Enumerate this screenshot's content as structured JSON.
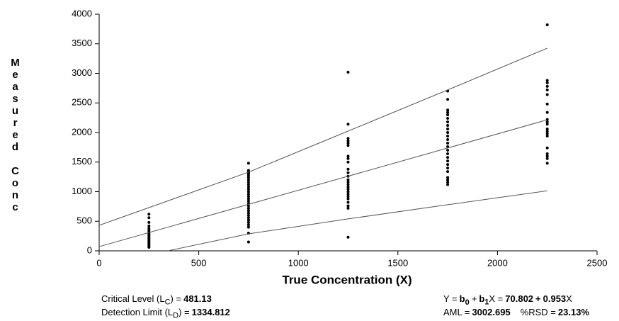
{
  "chart_data": {
    "type": "scatter",
    "y_label": "Measured Conc",
    "x_label": "True Concentration (X)",
    "xlim": [
      0,
      2500
    ],
    "ylim": [
      0,
      4000
    ],
    "xticks": [
      0,
      500,
      1000,
      1500,
      2000,
      2500
    ],
    "yticks": [
      0,
      500,
      1000,
      1500,
      2000,
      2500,
      3000,
      3500,
      4000
    ],
    "series": [
      {
        "kind": "points",
        "color": "#000000",
        "x": [
          250,
          250,
          250,
          250,
          250,
          250,
          250,
          250,
          250,
          250,
          250,
          250,
          250,
          250,
          250,
          250,
          250,
          250,
          250,
          250
        ],
        "values": [
          620,
          560,
          480,
          420,
          380,
          350,
          320,
          300,
          280,
          260,
          240,
          220,
          200,
          180,
          160,
          140,
          120,
          100,
          80,
          60
        ]
      },
      {
        "kind": "points",
        "color": "#000000",
        "x": [
          750,
          750,
          750,
          750,
          750,
          750,
          750,
          750,
          750,
          750,
          750,
          750,
          750,
          750,
          750,
          750,
          750,
          750,
          750,
          750,
          750,
          750,
          750,
          750,
          750,
          750,
          750,
          750,
          750,
          750
        ],
        "values": [
          1480,
          1360,
          1340,
          1320,
          1300,
          1270,
          1240,
          1200,
          1160,
          1120,
          1080,
          1040,
          1000,
          960,
          920,
          880,
          840,
          800,
          760,
          720,
          680,
          640,
          600,
          560,
          520,
          480,
          440,
          400,
          300,
          150
        ]
      },
      {
        "kind": "points",
        "color": "#000000",
        "x": [
          1250,
          1250,
          1250,
          1250,
          1250,
          1250,
          1250,
          1250,
          1250,
          1250,
          1250,
          1250,
          1250,
          1250,
          1250,
          1250,
          1250,
          1250,
          1250,
          1250,
          1250,
          1250,
          1250,
          1250,
          1250
        ],
        "values": [
          3020,
          2140,
          1900,
          1860,
          1820,
          1780,
          1600,
          1560,
          1500,
          1380,
          1320,
          1260,
          1200,
          1160,
          1120,
          1080,
          1040,
          1000,
          960,
          920,
          880,
          820,
          760,
          720,
          230
        ]
      },
      {
        "kind": "points",
        "color": "#000000",
        "x": [
          1750,
          1750,
          1750,
          1750,
          1750,
          1750,
          1750,
          1750,
          1750,
          1750,
          1750,
          1750,
          1750,
          1750,
          1750,
          1750,
          1750,
          1750,
          1750,
          1750,
          1750,
          1750,
          1750,
          1750,
          1750
        ],
        "values": [
          2700,
          2560,
          2380,
          2340,
          2300,
          2240,
          2180,
          2120,
          2060,
          2000,
          1940,
          1880,
          1820,
          1760,
          1700,
          1640,
          1580,
          1520,
          1460,
          1400,
          1340,
          1240,
          1200,
          1160,
          1120
        ]
      },
      {
        "kind": "points",
        "color": "#000000",
        "x": [
          2250,
          2250,
          2250,
          2250,
          2250,
          2250,
          2250,
          2250,
          2250,
          2250,
          2250,
          2250,
          2250,
          2250,
          2250,
          2250,
          2250,
          2250,
          2250,
          2250
        ],
        "values": [
          3820,
          2880,
          2840,
          2780,
          2720,
          2640,
          2480,
          2340,
          2220,
          2180,
          2140,
          2060,
          2020,
          1980,
          1940,
          1740,
          1640,
          1600,
          1560,
          1480
        ]
      },
      {
        "kind": "line",
        "color": "#555555",
        "x": [
          0,
          750,
          1250,
          1750,
          2250
        ],
        "values": [
          431,
          1330,
          2024,
          2720,
          3425
        ]
      },
      {
        "kind": "line",
        "color": "#555555",
        "x": [
          0,
          750,
          1250,
          1750,
          2250
        ],
        "values": [
          71,
          786,
          1262,
          1738,
          2215
        ]
      },
      {
        "kind": "line",
        "color": "#555555",
        "x": [
          345,
          750,
          1250,
          1750,
          2250
        ],
        "values": [
          0,
          287,
          540,
          780,
          1015
        ]
      }
    ]
  },
  "footer": {
    "critical_level": {
      "label": "Critical Level (L",
      "sub": "C",
      "close": ") =",
      "value": 481.13
    },
    "detection_limit": {
      "label": "Detection Limit (L",
      "sub": "D",
      "close": ") =",
      "value": 1334.812
    },
    "equation": {
      "lhs": "Y =",
      "b0": "b",
      "b0_sub": "0",
      "plus1": "+",
      "b1": "b",
      "b1_sub": "1",
      "x1": "X =",
      "intercept": 70.802,
      "plus2": "+",
      "slope": 0.953,
      "x2": "X"
    },
    "aml": {
      "label": "AML =",
      "value": 3002.695
    },
    "rsd": {
      "label": "%RSD =",
      "value": "23.13%"
    }
  }
}
